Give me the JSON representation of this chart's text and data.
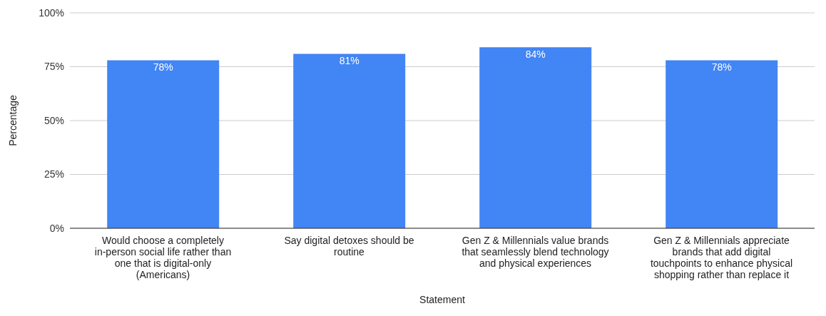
{
  "chart_data": {
    "type": "bar",
    "xlabel": "Statement",
    "ylabel": "Percentage",
    "categories": [
      "Would choose a completely in-person social life rather than one that is digital-only (Americans)",
      "Say digital detoxes should be routine",
      "Gen Z & Millennials value brands that seamlessly blend technology and physical experiences",
      "Gen Z & Millennials appreciate brands that add digital touchpoints to enhance physical shopping rather than replace it"
    ],
    "values": [
      78,
      81,
      84,
      78
    ],
    "value_labels": [
      "78%",
      "81%",
      "84%",
      "78%"
    ],
    "color": "#4285f4",
    "ylim": [
      0,
      100
    ],
    "yticks": [
      {
        "value": 0,
        "label": "0%"
      },
      {
        "value": 25,
        "label": "25%"
      },
      {
        "value": 50,
        "label": "50%"
      },
      {
        "value": 75,
        "label": "75%"
      },
      {
        "value": 100,
        "label": "100%"
      }
    ],
    "grid": "y",
    "legend": false
  }
}
